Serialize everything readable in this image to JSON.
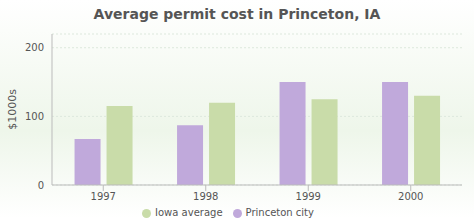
{
  "chart_data": {
    "type": "bar",
    "title": "Average permit cost in Princeton, IA",
    "y_label": "$1000s",
    "categories": [
      "1997",
      "1998",
      "1999",
      "2000"
    ],
    "series": [
      {
        "name": "Princeton city",
        "color": "#c0a9db",
        "values": [
          67,
          87,
          150,
          150
        ]
      },
      {
        "name": "Iowa average",
        "color": "#c9dca9",
        "values": [
          115,
          120,
          125,
          130
        ]
      }
    ],
    "ylim": [
      0,
      220
    ],
    "yticks": [
      0,
      100,
      200
    ],
    "grid": true,
    "legend": "bottom"
  }
}
